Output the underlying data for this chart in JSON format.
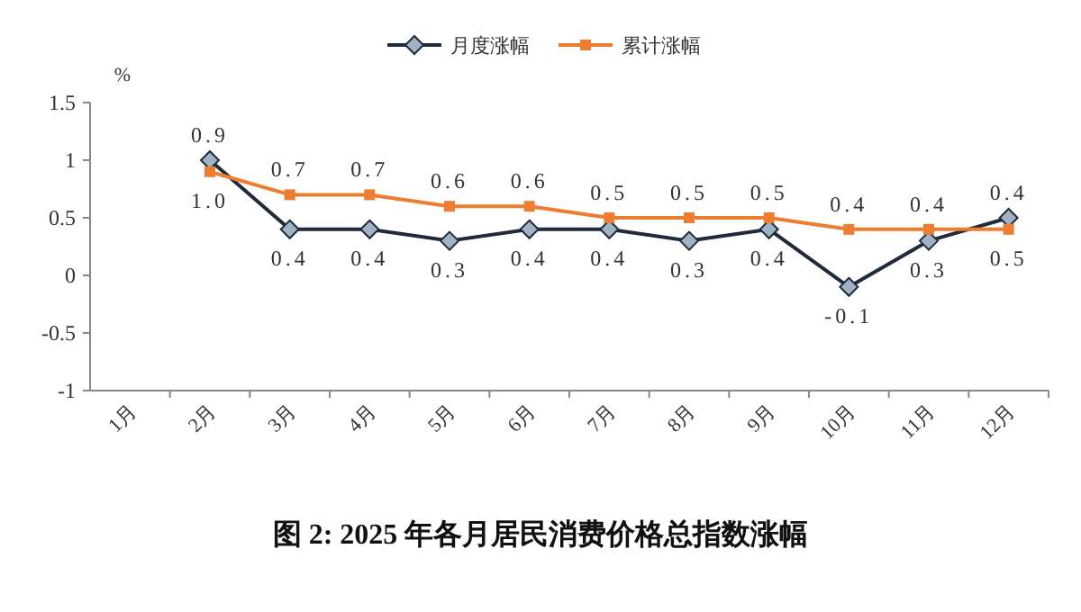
{
  "chart_data": {
    "type": "line",
    "title": "图 2:   2025 年各月居民消费价格总指数涨幅",
    "ylabel": "%",
    "categories": [
      "1月",
      "2月",
      "3月",
      "4月",
      "5月",
      "6月",
      "7月",
      "8月",
      "9月",
      "10月",
      "11月",
      "12月"
    ],
    "series": [
      {
        "name": "月度涨幅",
        "color": "#1f2a3a",
        "marker": "diamond",
        "values": [
          null,
          1.0,
          0.4,
          0.4,
          0.3,
          0.4,
          0.4,
          0.3,
          0.4,
          -0.1,
          0.3,
          0.5
        ],
        "value_labels": [
          null,
          "1.0",
          "0.4",
          "0.4",
          "0.3",
          "0.4",
          "0.4",
          "0.3",
          "0.4",
          "-0.1",
          "0.3",
          "0.5"
        ]
      },
      {
        "name": "累计涨幅",
        "color": "#ed7d31",
        "marker": "square",
        "values": [
          null,
          0.9,
          0.7,
          0.7,
          0.6,
          0.6,
          0.5,
          0.5,
          0.5,
          0.4,
          0.4,
          0.4
        ],
        "value_labels": [
          null,
          "0.9",
          "0.7",
          "0.7",
          "0.6",
          "0.6",
          "0.5",
          "0.5",
          "0.5",
          "0.4",
          "0.4",
          "0.4"
        ]
      }
    ],
    "ylim": [
      -1,
      1.5
    ],
    "yticks": [
      -1,
      -0.5,
      0,
      0.5,
      1,
      1.5
    ],
    "grid": false,
    "legend": "top",
    "line_style": "solid"
  }
}
